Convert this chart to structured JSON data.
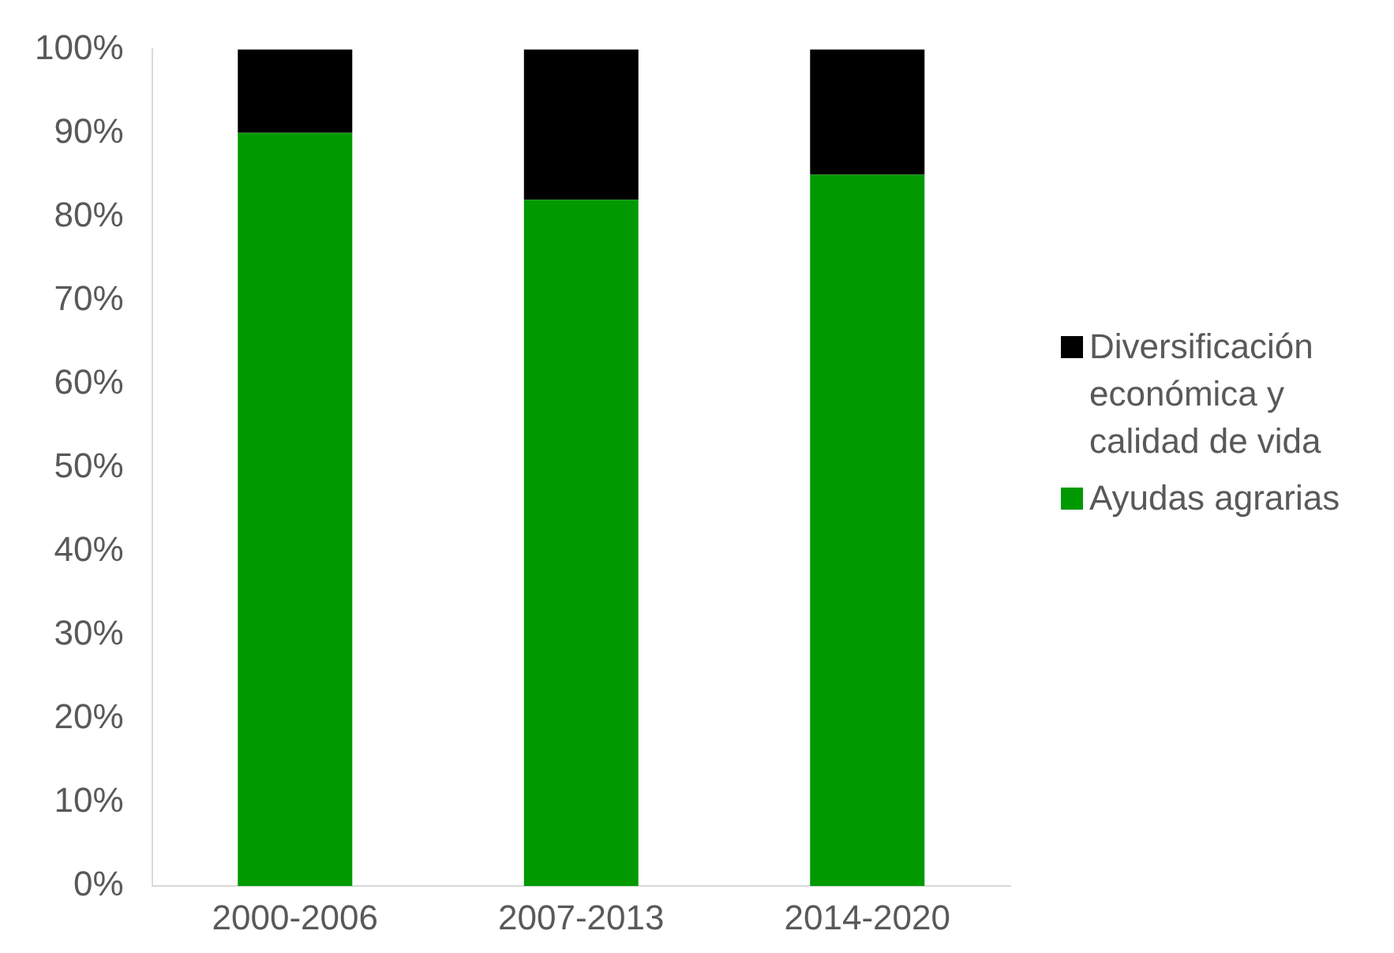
{
  "chart_data": {
    "type": "bar",
    "stacked": true,
    "categories": [
      "2000-2006",
      "2007-2013",
      "2014-2020"
    ],
    "series": [
      {
        "name": "Ayudas agrarias",
        "color": "#009900",
        "values": [
          90,
          82,
          85
        ]
      },
      {
        "name": "Diversificación económica y calidad de vida",
        "color": "#000000",
        "values": [
          10,
          18,
          15
        ]
      }
    ],
    "ylim": [
      0,
      100
    ],
    "yticks": [
      {
        "value": 0,
        "label": "0%"
      },
      {
        "value": 10,
        "label": "10%"
      },
      {
        "value": 20,
        "label": "20%"
      },
      {
        "value": 30,
        "label": "30%"
      },
      {
        "value": 40,
        "label": "40%"
      },
      {
        "value": 50,
        "label": "50%"
      },
      {
        "value": 60,
        "label": "60%"
      },
      {
        "value": 70,
        "label": "70%"
      },
      {
        "value": 80,
        "label": "80%"
      },
      {
        "value": 90,
        "label": "90%"
      },
      {
        "value": 100,
        "label": "100%"
      }
    ],
    "grid": false,
    "legend": "right"
  }
}
